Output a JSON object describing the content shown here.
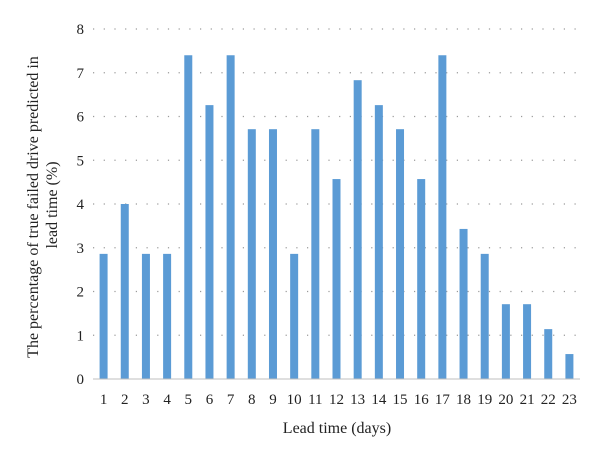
{
  "chart_data": {
    "type": "bar",
    "title": "",
    "xlabel": "Lead time (days)",
    "ylabel_line1": "The percentage of true failed drive predicted in",
    "ylabel_line2": "lead time (%)",
    "ylim": [
      0,
      8
    ],
    "yticks": [
      0,
      1,
      2,
      3,
      4,
      5,
      6,
      7,
      8
    ],
    "grid": "horizontal dotted",
    "legend": "none",
    "categories": [
      "1",
      "2",
      "3",
      "4",
      "5",
      "6",
      "7",
      "8",
      "9",
      "10",
      "11",
      "12",
      "13",
      "14",
      "15",
      "16",
      "17",
      "18",
      "19",
      "20",
      "21",
      "22",
      "23"
    ],
    "values": [
      2.86,
      4.0,
      2.86,
      2.86,
      7.4,
      6.26,
      7.4,
      5.71,
      5.71,
      2.86,
      5.71,
      4.57,
      6.83,
      6.26,
      5.71,
      4.57,
      7.4,
      3.43,
      2.86,
      1.71,
      1.71,
      1.14,
      0.57
    ],
    "bar_color": "#5b9bd5"
  }
}
